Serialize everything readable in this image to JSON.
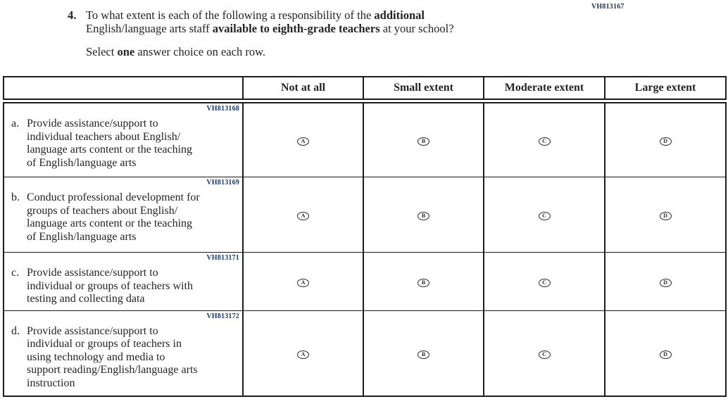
{
  "colors": {
    "text": "#242424",
    "code_navy": "#1b3766",
    "table_border": "#1c1c1c",
    "background": "#ffffff"
  },
  "page_code": "VH813167",
  "question": {
    "number": "4.",
    "lines": [
      [
        {
          "t": "To what extent is each of the following a responsibility of the ",
          "b": false
        },
        {
          "t": "additional",
          "b": true
        }
      ],
      [
        {
          "t": "English/language arts staff ",
          "b": false
        },
        {
          "t": "available to eighth-grade teachers",
          "b": true
        },
        {
          "t": " at your school?",
          "b": false
        }
      ]
    ],
    "instruction": [
      {
        "t": "Select ",
        "b": false
      },
      {
        "t": "one",
        "b": true
      },
      {
        "t": " answer choice on each row.",
        "b": false
      }
    ]
  },
  "table": {
    "columns": [
      "Not at all",
      "Small extent",
      "Moderate extent",
      "Large extent"
    ],
    "rows": [
      {
        "code": "VH813168",
        "label": "a.",
        "lines": [
          "Provide assistance/support to",
          "individual teachers about English/",
          "language arts content or the teaching",
          "of English/language arts"
        ],
        "options": [
          "A",
          "B",
          "C",
          "D"
        ]
      },
      {
        "code": "VH813169",
        "label": "b.",
        "lines": [
          "Conduct professional development for",
          "groups of teachers about English/",
          "language arts content or the teaching",
          "of English/language arts"
        ],
        "options": [
          "A",
          "B",
          "C",
          "D"
        ]
      },
      {
        "code": "VH813171",
        "label": "c.",
        "lines": [
          "Provide assistance/support to",
          "individual or groups of teachers with",
          "testing and collecting data"
        ],
        "options": [
          "A",
          "B",
          "C",
          "D"
        ]
      },
      {
        "code": "VH813172",
        "label": "d.",
        "lines": [
          "Provide assistance/support to",
          "individual or groups of teachers in",
          "using technology and media to",
          "support reading/English/language arts",
          "instruction"
        ],
        "options": [
          "A",
          "B",
          "C",
          "D"
        ]
      }
    ]
  }
}
